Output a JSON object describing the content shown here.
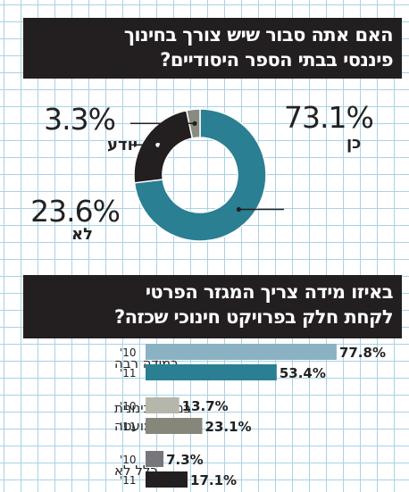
{
  "chart_data": [
    {
      "type": "pie",
      "style": "donut",
      "title": "האם אתה סבור שיש צורך בחינוך פיננסי בבתי הספר היסודיים?",
      "title_lines": [
        "האם אתה סבור שיש צורך בחינוך",
        "פיננסי בבתי הספר היסודיים?"
      ],
      "slices": [
        {
          "label": "כן",
          "value": 73.1,
          "value_label": "73.1%",
          "color": "#2a7f92"
        },
        {
          "label": "לא",
          "value": 23.6,
          "value_label": "23.6%",
          "color": "#231f20"
        },
        {
          "label": "לא יודע",
          "value": 3.3,
          "value_label": "3.3%",
          "color": "#8a8b80"
        }
      ]
    },
    {
      "type": "bar",
      "orientation": "horizontal",
      "title": "באיזו מידה צריך המגזר הפרטי לקחת חלק בפרויקט חינוכי שכזה?",
      "title_lines": [
        "באיזו מידה צריך המגזר הפרטי",
        "לקחת חלק בפרויקט חינוכי שכזה?"
      ],
      "xlim": [
        0,
        100
      ],
      "categories": [
        {
          "label_lines": [
            "במידה רבה"
          ],
          "rows": [
            {
              "year": "'10",
              "value": 77.8,
              "value_label": "77.8%",
              "color": "#8ab2c2"
            },
            {
              "year": "'11",
              "value": 53.4,
              "value_label": "53.4%",
              "color": "#2a7f92"
            }
          ]
        },
        {
          "label_lines": [
            "במידה בינונית",
            "או מועטה"
          ],
          "rows": [
            {
              "year": "'10",
              "value": 13.7,
              "value_label": "13.7%",
              "color": "#b5b7ab"
            },
            {
              "year": "'11",
              "value": 23.1,
              "value_label": "23.1%",
              "color": "#86877a"
            }
          ]
        },
        {
          "label_lines": [
            "כלל לא"
          ],
          "rows": [
            {
              "year": "'10",
              "value": 7.3,
              "value_label": "7.3%",
              "color": "#77777b"
            },
            {
              "year": "'11",
              "value": 17.1,
              "value_label": "17.1%",
              "color": "#231f20"
            }
          ]
        }
      ]
    }
  ]
}
